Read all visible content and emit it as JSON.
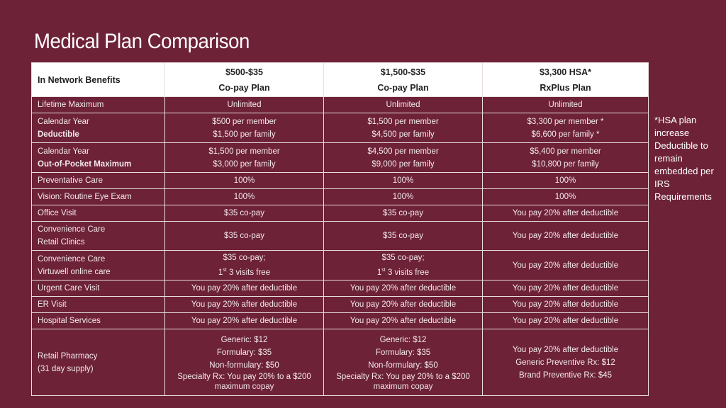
{
  "title": "Medical Plan Comparison",
  "header": {
    "benefits": "In Network Benefits",
    "plans": [
      [
        "$500-$35",
        "Co-pay Plan"
      ],
      [
        "$1,500-$35",
        "Co-pay Plan"
      ],
      [
        "$3,300 HSA*",
        "RxPlus Plan"
      ]
    ]
  },
  "rows": [
    {
      "label": [
        "Lifetime Maximum"
      ],
      "cells": [
        [
          "Unlimited"
        ],
        [
          "Unlimited"
        ],
        [
          "Unlimited"
        ]
      ]
    },
    {
      "label": [
        "Calendar Year",
        "Deductible"
      ],
      "cells": [
        [
          "$500 per member",
          "$1,500 per family"
        ],
        [
          "$1,500 per member",
          "$4,500 per family"
        ],
        [
          "$3,300 per member *",
          "$6,600 per family *"
        ]
      ]
    },
    {
      "label": [
        "Calendar Year",
        "Out-of-Pocket Maximum"
      ],
      "cells": [
        [
          "$1,500 per member",
          "$3,000 per family"
        ],
        [
          "$4,500 per member",
          "$9,000 per family"
        ],
        [
          "$5,400 per member",
          "$10,800 per family"
        ]
      ]
    },
    {
      "label": [
        "Preventative Care"
      ],
      "cells": [
        [
          "100%"
        ],
        [
          "100%"
        ],
        [
          "100%"
        ]
      ]
    },
    {
      "label": [
        "Vision: Routine Eye Exam"
      ],
      "cells": [
        [
          "100%"
        ],
        [
          "100%"
        ],
        [
          "100%"
        ]
      ]
    },
    {
      "label": [
        "Office Visit"
      ],
      "cells": [
        [
          "$35 co-pay"
        ],
        [
          "$35 co-pay"
        ],
        [
          "You pay 20% after deductible"
        ]
      ]
    },
    {
      "label": [
        "Convenience Care",
        "Retail Clinics"
      ],
      "cells": [
        [
          "$35 co-pay"
        ],
        [
          "$35 co-pay"
        ],
        [
          "You pay 20% after deductible"
        ]
      ]
    },
    {
      "label": [
        "Convenience Care",
        "Virtuwell online care"
      ],
      "cells": [
        [
          "$35 co-pay;",
          "1st 3 visits free"
        ],
        [
          "$35 co-pay;",
          "1st 3 visits free"
        ],
        [
          "You pay 20% after deductible"
        ]
      ]
    },
    {
      "label": [
        "Urgent Care Visit"
      ],
      "cells": [
        [
          "You pay 20% after deductible"
        ],
        [
          "You pay 20% after deductible"
        ],
        [
          "You pay 20% after deductible"
        ]
      ]
    },
    {
      "label": [
        "ER Visit"
      ],
      "cells": [
        [
          "You pay 20% after deductible"
        ],
        [
          "You pay 20% after deductible"
        ],
        [
          "You pay 20% after deductible"
        ]
      ]
    },
    {
      "label": [
        "Hospital Services"
      ],
      "cells": [
        [
          "You pay 20% after deductible"
        ],
        [
          "You pay 20% after deductible"
        ],
        [
          "You pay 20% after deductible"
        ]
      ]
    },
    {
      "label": [
        "Retail Pharmacy",
        "(31 day supply)"
      ],
      "cells": [
        [
          "Generic: $12",
          "Formulary: $35",
          "Non-formulary: $50",
          "Specialty Rx: You pay 20% to a $200 maximum copay"
        ],
        [
          "Generic: $12",
          "Formulary: $35",
          "Non-formulary: $50",
          "Specialty Rx: You pay 20% to a $200 maximum copay"
        ],
        [
          "You pay 20% after deductible",
          "Generic Preventive Rx: $12",
          "Brand Preventive Rx: $45"
        ]
      ]
    }
  ],
  "note": "*HSA plan increase Deductible to remain embedded per IRS Requirements"
}
